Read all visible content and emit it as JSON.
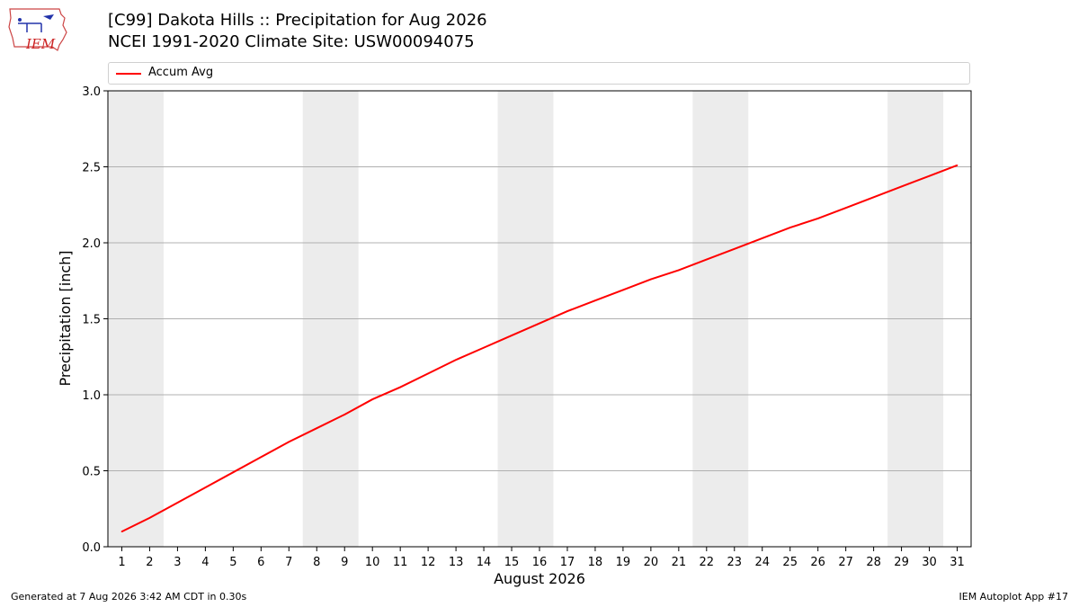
{
  "header": {
    "title_line1": "[C99] Dakota Hills :: Precipitation for Aug 2026",
    "title_line2": "NCEI 1991-2020 Climate Site: USW00094075"
  },
  "logo": {
    "text": "IEM"
  },
  "footer": {
    "left": "Generated at 7 Aug 2026 3:42 AM CDT in 0.30s",
    "right": "IEM Autoplot App #17"
  },
  "chart_data": {
    "type": "line",
    "xlabel": "August 2026",
    "ylabel": "Precipitation [inch]",
    "ylim": [
      0.0,
      3.0
    ],
    "y_ticks": [
      "0.0",
      "0.5",
      "1.0",
      "1.5",
      "2.0",
      "2.5",
      "3.0"
    ],
    "grid": "horizontal",
    "legend_position": "top",
    "weekend_shading_days": [
      [
        1,
        2
      ],
      [
        8,
        9
      ],
      [
        15,
        16
      ],
      [
        22,
        23
      ],
      [
        29,
        30
      ]
    ],
    "shade_color": "#ececec",
    "x": [
      1,
      2,
      3,
      4,
      5,
      6,
      7,
      8,
      9,
      10,
      11,
      12,
      13,
      14,
      15,
      16,
      17,
      18,
      19,
      20,
      21,
      22,
      23,
      24,
      25,
      26,
      27,
      28,
      29,
      30,
      31
    ],
    "series": [
      {
        "name": "Accum Avg",
        "color": "#ff0000",
        "values": [
          0.1,
          0.19,
          0.29,
          0.39,
          0.49,
          0.59,
          0.69,
          0.78,
          0.87,
          0.97,
          1.05,
          1.14,
          1.23,
          1.31,
          1.39,
          1.47,
          1.55,
          1.62,
          1.69,
          1.76,
          1.82,
          1.89,
          1.96,
          2.03,
          2.1,
          2.16,
          2.23,
          2.3,
          2.37,
          2.44,
          2.51
        ]
      }
    ]
  }
}
